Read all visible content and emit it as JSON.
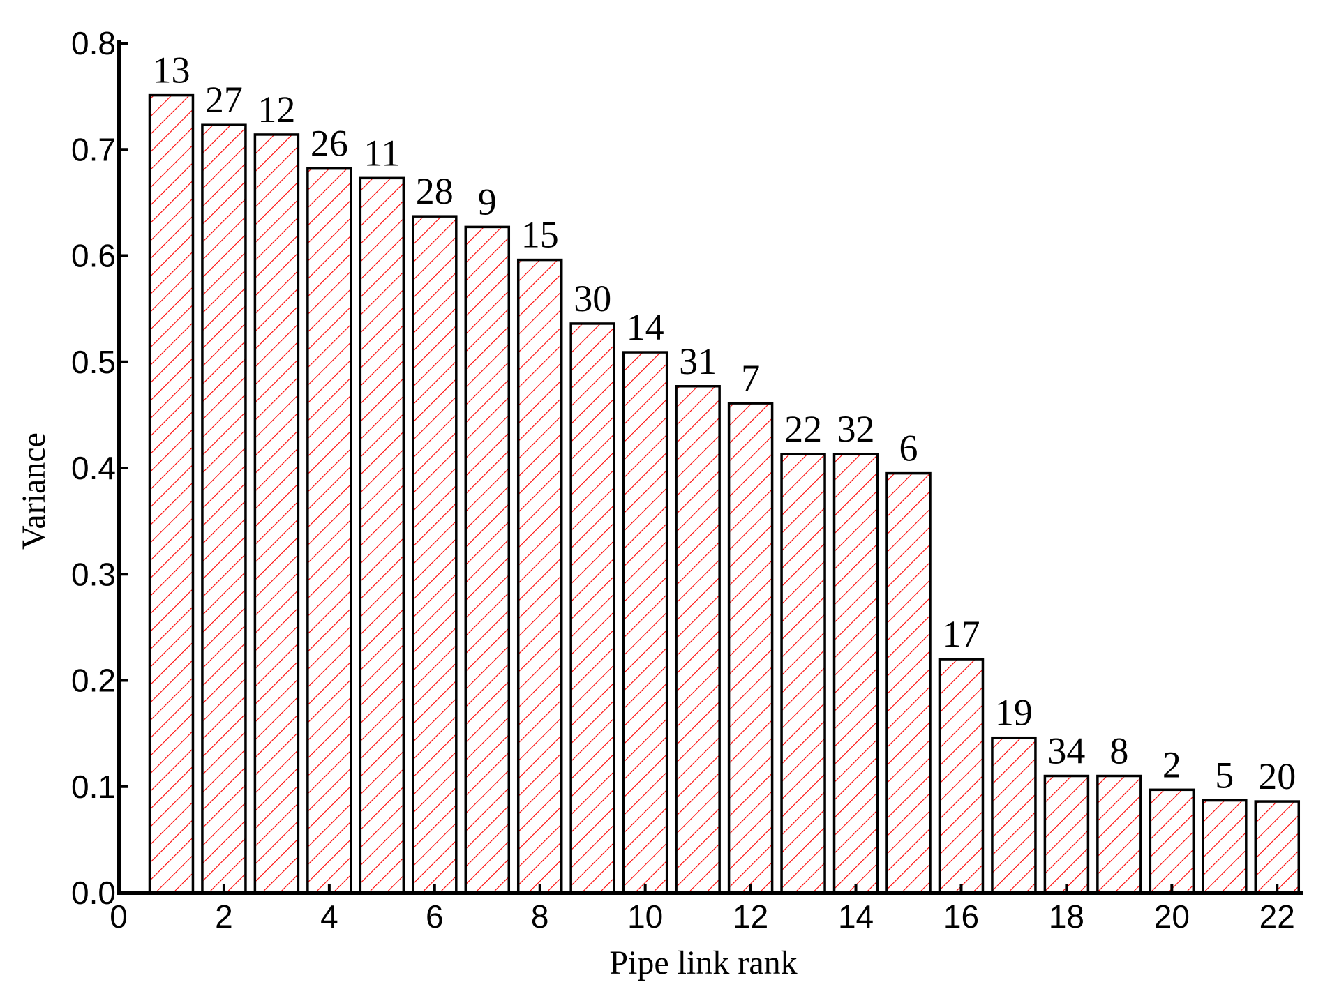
{
  "colors": {
    "hatch": "#ff0000",
    "bar_outline": "#000000",
    "axis": "#000000",
    "background": "#ffffff"
  },
  "chart_data": {
    "type": "bar",
    "title": "",
    "xlabel": "Pipe link rank",
    "ylabel": "Variance",
    "xlim": [
      0,
      22.5
    ],
    "ylim": [
      0,
      0.8
    ],
    "xticks": [
      "0",
      "2",
      "4",
      "6",
      "8",
      "10",
      "12",
      "14",
      "16",
      "18",
      "20",
      "22"
    ],
    "yticks": [
      "0.0",
      "0.1",
      "0.2",
      "0.3",
      "0.4",
      "0.5",
      "0.6",
      "0.7",
      "0.8"
    ],
    "grid": false,
    "bar_fill": "red diagonal hatch",
    "x": [
      1,
      2,
      3,
      4,
      5,
      6,
      7,
      8,
      9,
      10,
      11,
      12,
      13,
      14,
      15,
      16,
      17,
      18,
      19,
      20,
      21,
      22
    ],
    "values": [
      0.751,
      0.723,
      0.714,
      0.682,
      0.673,
      0.637,
      0.627,
      0.596,
      0.536,
      0.509,
      0.477,
      0.461,
      0.413,
      0.413,
      0.395,
      0.22,
      0.146,
      0.11,
      0.11,
      0.097,
      0.087,
      0.086
    ],
    "bar_labels": [
      "13",
      "27",
      "12",
      "26",
      "11",
      "28",
      "9",
      "15",
      "30",
      "14",
      "31",
      "7",
      "22",
      "32",
      "6",
      "17",
      "19",
      "34",
      "8",
      "2",
      "5",
      "20"
    ]
  }
}
